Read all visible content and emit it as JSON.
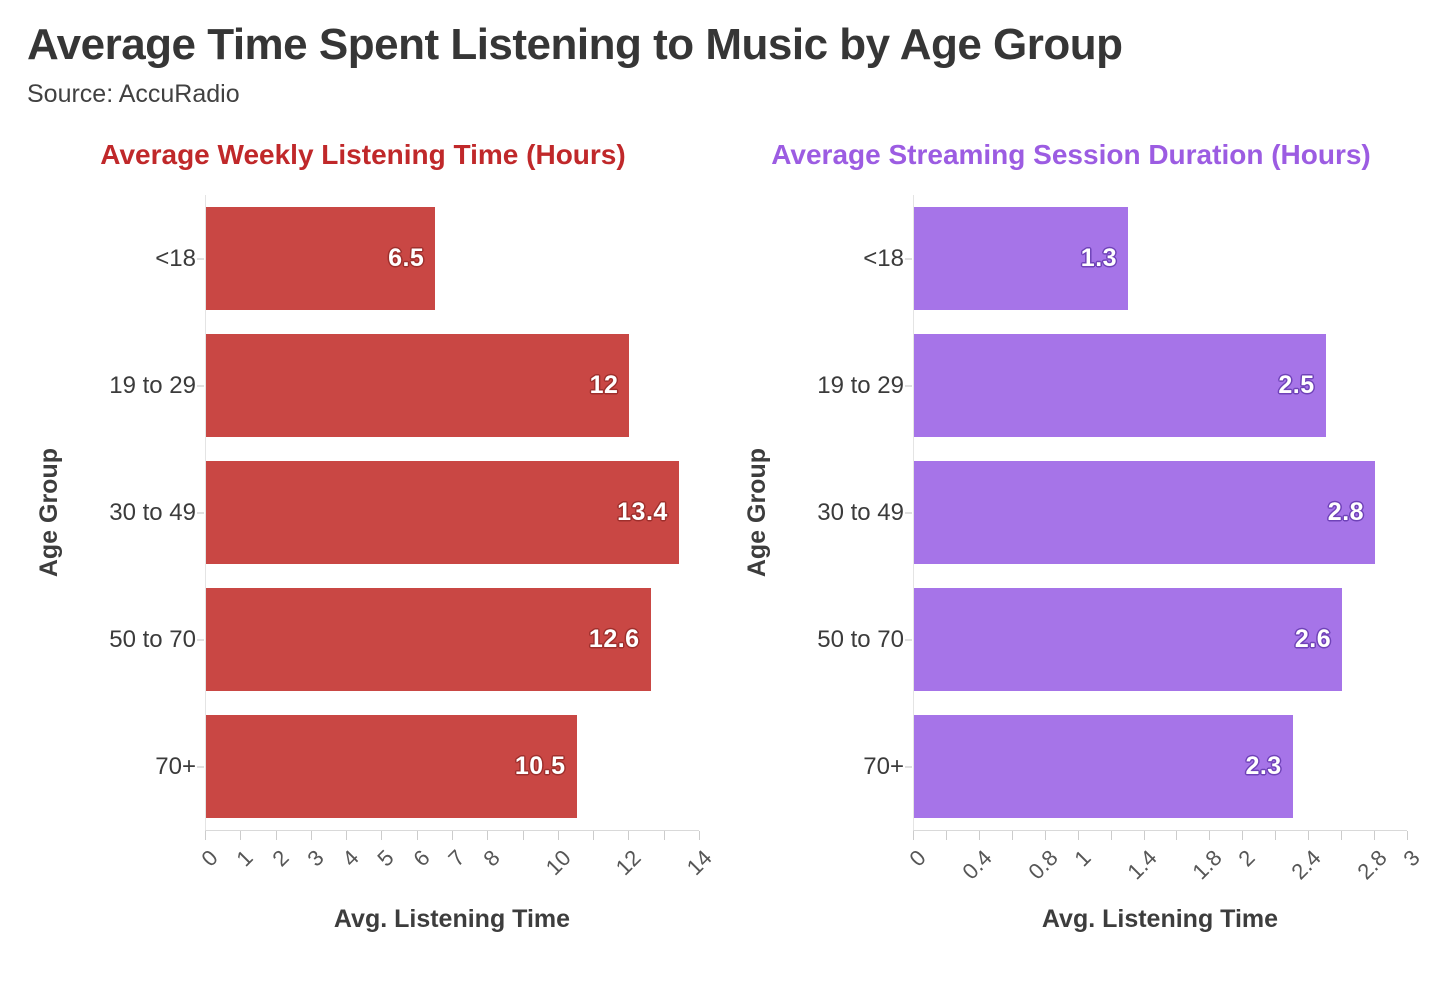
{
  "page": {
    "title": "Average Time Spent Listening to Music by Age Group",
    "source": "Source: AccuRadio"
  },
  "chart_data": [
    {
      "type": "bar",
      "orientation": "horizontal",
      "title": "Average Weekly Listening Time (Hours)",
      "title_color": "#c0282a",
      "bar_color": "#c94744",
      "value_outline_color": "#9e2f2c",
      "categories": [
        "<18",
        "19 to 29",
        "30 to 49",
        "50 to 70",
        "70+"
      ],
      "values": [
        6.5,
        12,
        13.4,
        12.6,
        10.5
      ],
      "value_labels": [
        "6.5",
        "12",
        "13.4",
        "12.6",
        "10.5"
      ],
      "xlabel": "Avg. Listening Time",
      "ylabel": "Age Group",
      "xlim": [
        0,
        14
      ],
      "grid": false,
      "xticks": [
        0,
        1,
        2,
        3,
        4,
        5,
        6,
        7,
        8,
        9,
        10,
        11,
        12,
        13,
        14
      ],
      "xtick_labels": [
        "0",
        "1",
        "2",
        "3",
        "4",
        "5",
        "6",
        "7",
        "8",
        "",
        "10",
        "",
        "12",
        "",
        "14"
      ]
    },
    {
      "type": "bar",
      "orientation": "horizontal",
      "title": "Average Streaming Session Duration (Hours)",
      "title_color": "#9c5ce2",
      "bar_color": "#a674e8",
      "value_outline_color": "#6f42b8",
      "categories": [
        "<18",
        "19 to 29",
        "30 to 49",
        "50 to 70",
        "70+"
      ],
      "values": [
        1.3,
        2.5,
        2.8,
        2.6,
        2.3
      ],
      "value_labels": [
        "1.3",
        "2.5",
        "2.8",
        "2.6",
        "2.3"
      ],
      "xlabel": "Avg. Listening Time",
      "ylabel": "Age Group",
      "xlim": [
        0,
        3
      ],
      "grid": false,
      "xticks": [
        0,
        0.2,
        0.4,
        0.6,
        0.8,
        1,
        1.2,
        1.4,
        1.6,
        1.8,
        2,
        2.2,
        2.4,
        2.6,
        2.8,
        3
      ],
      "xtick_labels": [
        "0",
        "",
        "0.4",
        "",
        "0.8",
        "1",
        "",
        "1.4",
        "",
        "1.8",
        "2",
        "",
        "2.4",
        "",
        "2.8",
        "3"
      ]
    }
  ]
}
